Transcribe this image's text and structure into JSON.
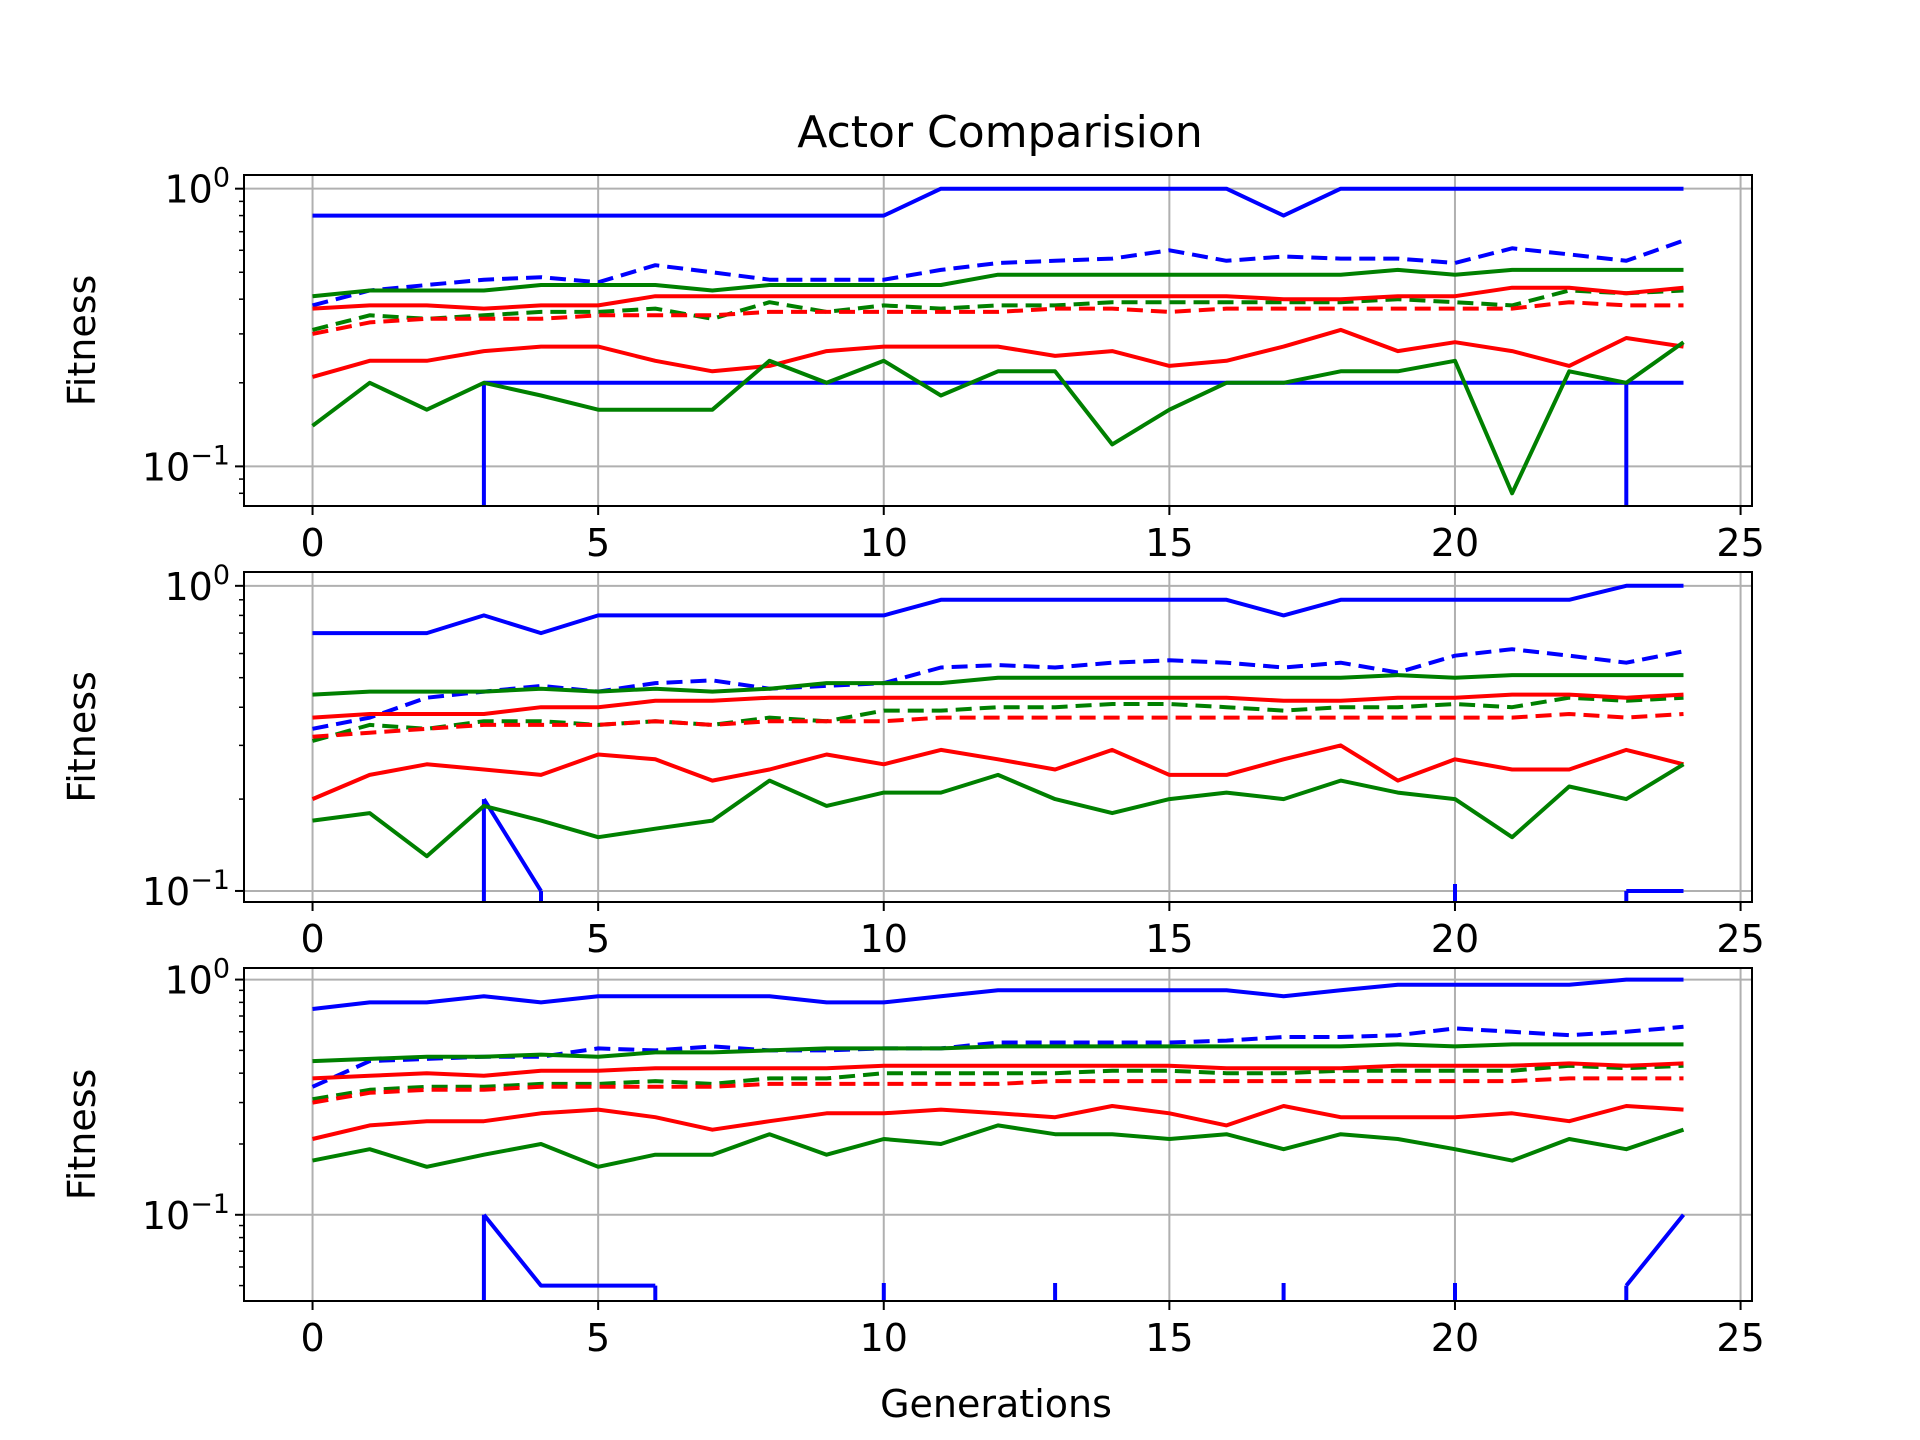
{
  "title": "Actor Comparision",
  "xlabel": "Generations",
  "colors": {
    "blue": "#0000ff",
    "green": "#008000",
    "red": "#ff0000",
    "grid": "#b0b0b0"
  },
  "chart_data": [
    {
      "type": "line",
      "title": "Actor Comparision",
      "ylabel": "Fitness",
      "yscale": "log",
      "xlim": [
        -1.2,
        25.2
      ],
      "ylim": [
        0.072,
        1.12
      ],
      "x_ticks": [
        0,
        5,
        10,
        15,
        20,
        25
      ],
      "y_ticks": [
        {
          "value": 1,
          "label": "10",
          "exp": "0"
        },
        {
          "value": 0.1,
          "label": "10",
          "exp": "−1"
        }
      ],
      "grid": true,
      "x": [
        0,
        1,
        2,
        3,
        4,
        5,
        6,
        7,
        8,
        9,
        10,
        11,
        12,
        13,
        14,
        15,
        16,
        17,
        18,
        19,
        20,
        21,
        22,
        23,
        24
      ],
      "series": [
        {
          "color": "blue",
          "dash": false,
          "values": [
            0.8,
            0.8,
            0.8,
            0.8,
            0.8,
            0.8,
            0.8,
            0.8,
            0.8,
            0.8,
            0.8,
            1,
            1,
            1,
            1,
            1,
            1,
            0.8,
            1,
            1,
            1,
            1,
            1,
            1,
            1
          ]
        },
        {
          "color": "blue",
          "dash": false,
          "values": [
            null,
            null,
            null,
            0.2,
            0.2,
            0.2,
            0.2,
            0.2,
            0.2,
            0.2,
            0.2,
            0.2,
            0.2,
            0.2,
            0.2,
            0.2,
            0.2,
            0.2,
            0.2,
            0.2,
            0.2,
            0.2,
            0.2,
            0.2,
            0.2
          ],
          "drop_from": [
            3,
            23
          ],
          "floor_segments": [
            [
              3,
              23
            ]
          ],
          "visible_segments": [
            [
              23,
              24
            ]
          ]
        },
        {
          "color": "blue",
          "dash": true,
          "values": [
            0.38,
            0.43,
            0.45,
            0.47,
            0.48,
            0.46,
            0.53,
            0.5,
            0.47,
            0.47,
            0.47,
            0.51,
            0.54,
            0.55,
            0.56,
            0.6,
            0.55,
            0.57,
            0.56,
            0.56,
            0.54,
            0.61,
            0.58,
            0.55,
            0.65
          ]
        },
        {
          "color": "green",
          "dash": false,
          "values": [
            0.41,
            0.43,
            0.43,
            0.43,
            0.45,
            0.45,
            0.45,
            0.43,
            0.45,
            0.45,
            0.45,
            0.45,
            0.49,
            0.49,
            0.49,
            0.49,
            0.49,
            0.49,
            0.49,
            0.51,
            0.49,
            0.51,
            0.51,
            0.51,
            0.51
          ]
        },
        {
          "color": "green",
          "dash": true,
          "values": [
            0.31,
            0.35,
            0.34,
            0.35,
            0.36,
            0.36,
            0.37,
            0.34,
            0.39,
            0.36,
            0.38,
            0.37,
            0.38,
            0.38,
            0.39,
            0.39,
            0.39,
            0.39,
            0.39,
            0.4,
            0.39,
            0.38,
            0.43,
            0.42,
            0.43
          ]
        },
        {
          "color": "red",
          "dash": false,
          "values": [
            0.37,
            0.38,
            0.38,
            0.37,
            0.38,
            0.38,
            0.41,
            0.41,
            0.41,
            0.41,
            0.41,
            0.41,
            0.41,
            0.41,
            0.41,
            0.41,
            0.41,
            0.4,
            0.4,
            0.41,
            0.41,
            0.44,
            0.44,
            0.42,
            0.44
          ]
        },
        {
          "color": "red",
          "dash": true,
          "values": [
            0.3,
            0.33,
            0.34,
            0.34,
            0.34,
            0.35,
            0.35,
            0.35,
            0.36,
            0.36,
            0.36,
            0.36,
            0.36,
            0.37,
            0.37,
            0.36,
            0.37,
            0.37,
            0.37,
            0.37,
            0.37,
            0.37,
            0.39,
            0.38,
            0.38
          ]
        },
        {
          "color": "red",
          "dash": false,
          "values": [
            0.21,
            0.24,
            0.24,
            0.26,
            0.27,
            0.27,
            0.24,
            0.22,
            0.23,
            0.26,
            0.27,
            0.27,
            0.27,
            0.25,
            0.26,
            0.23,
            0.24,
            0.27,
            0.31,
            0.26,
            0.28,
            0.26,
            0.23,
            0.29,
            0.27
          ]
        },
        {
          "color": "green",
          "dash": false,
          "values": [
            0.14,
            0.2,
            0.16,
            0.2,
            0.18,
            0.16,
            0.16,
            0.16,
            0.24,
            0.2,
            0.24,
            0.18,
            0.22,
            0.22,
            0.12,
            0.16,
            0.2,
            0.2,
            0.22,
            0.22,
            0.24,
            0.08,
            0.22,
            0.2,
            0.28
          ]
        }
      ]
    },
    {
      "type": "line",
      "ylabel": "Fitness",
      "yscale": "log",
      "xlim": [
        -1.2,
        25.2
      ],
      "ylim": [
        0.092,
        1.11
      ],
      "x_ticks": [
        0,
        5,
        10,
        15,
        20,
        25
      ],
      "y_ticks": [
        {
          "value": 1,
          "label": "10",
          "exp": "0"
        },
        {
          "value": 0.1,
          "label": "10",
          "exp": "−1"
        }
      ],
      "grid": true,
      "x": [
        0,
        1,
        2,
        3,
        4,
        5,
        6,
        7,
        8,
        9,
        10,
        11,
        12,
        13,
        14,
        15,
        16,
        17,
        18,
        19,
        20,
        21,
        22,
        23,
        24
      ],
      "series": [
        {
          "color": "blue",
          "dash": false,
          "values": [
            0.7,
            0.7,
            0.7,
            0.8,
            0.7,
            0.8,
            0.8,
            0.8,
            0.8,
            0.8,
            0.8,
            0.9,
            0.9,
            0.9,
            0.9,
            0.9,
            0.9,
            0.8,
            0.9,
            0.9,
            0.9,
            0.9,
            0.9,
            1,
            1
          ]
        },
        {
          "color": "blue",
          "dash": false,
          "values": [
            null,
            null,
            null,
            0.2,
            0.1,
            null,
            null,
            null,
            null,
            null,
            null,
            null,
            null,
            null,
            null,
            null,
            null,
            null,
            null,
            null,
            null,
            null,
            null,
            0.1,
            0.1
          ],
          "drop_from": [
            3,
            4,
            20,
            23
          ]
        },
        {
          "color": "blue",
          "dash": true,
          "values": [
            0.34,
            0.37,
            0.43,
            0.45,
            0.47,
            0.45,
            0.48,
            0.49,
            0.46,
            0.47,
            0.48,
            0.54,
            0.55,
            0.54,
            0.56,
            0.57,
            0.56,
            0.54,
            0.56,
            0.52,
            0.59,
            0.62,
            0.59,
            0.56,
            0.61
          ]
        },
        {
          "color": "green",
          "dash": false,
          "values": [
            0.44,
            0.45,
            0.45,
            0.45,
            0.46,
            0.45,
            0.46,
            0.45,
            0.46,
            0.48,
            0.48,
            0.48,
            0.5,
            0.5,
            0.5,
            0.5,
            0.5,
            0.5,
            0.5,
            0.51,
            0.5,
            0.51,
            0.51,
            0.51,
            0.51
          ]
        },
        {
          "color": "green",
          "dash": true,
          "values": [
            0.31,
            0.35,
            0.34,
            0.36,
            0.36,
            0.35,
            0.36,
            0.35,
            0.37,
            0.36,
            0.39,
            0.39,
            0.4,
            0.4,
            0.41,
            0.41,
            0.4,
            0.39,
            0.4,
            0.4,
            0.41,
            0.4,
            0.43,
            0.42,
            0.43
          ]
        },
        {
          "color": "red",
          "dash": false,
          "values": [
            0.37,
            0.38,
            0.38,
            0.38,
            0.4,
            0.4,
            0.42,
            0.42,
            0.43,
            0.43,
            0.43,
            0.43,
            0.43,
            0.43,
            0.43,
            0.43,
            0.43,
            0.42,
            0.42,
            0.43,
            0.43,
            0.44,
            0.44,
            0.43,
            0.44
          ]
        },
        {
          "color": "red",
          "dash": true,
          "values": [
            0.32,
            0.33,
            0.34,
            0.35,
            0.35,
            0.35,
            0.36,
            0.35,
            0.36,
            0.36,
            0.36,
            0.37,
            0.37,
            0.37,
            0.37,
            0.37,
            0.37,
            0.37,
            0.37,
            0.37,
            0.37,
            0.37,
            0.38,
            0.37,
            0.38
          ]
        },
        {
          "color": "red",
          "dash": false,
          "values": [
            0.2,
            0.24,
            0.26,
            0.25,
            0.24,
            0.28,
            0.27,
            0.23,
            0.25,
            0.28,
            0.26,
            0.29,
            0.27,
            0.25,
            0.29,
            0.24,
            0.24,
            0.27,
            0.3,
            0.23,
            0.27,
            0.25,
            0.25,
            0.29,
            0.26
          ]
        },
        {
          "color": "green",
          "dash": false,
          "values": [
            0.17,
            0.18,
            0.13,
            0.19,
            0.17,
            0.15,
            0.16,
            0.17,
            0.23,
            0.19,
            0.21,
            0.21,
            0.24,
            0.2,
            0.18,
            0.2,
            0.21,
            0.2,
            0.23,
            0.21,
            0.2,
            0.15,
            0.22,
            0.2,
            0.26
          ]
        }
      ]
    },
    {
      "type": "line",
      "ylabel": "Fitness",
      "yscale": "log",
      "xlim": [
        -1.2,
        25.2
      ],
      "ylim": [
        0.043,
        1.12
      ],
      "x_ticks": [
        0,
        5,
        10,
        15,
        20,
        25
      ],
      "y_ticks": [
        {
          "value": 1,
          "label": "10",
          "exp": "0"
        },
        {
          "value": 0.1,
          "label": "10",
          "exp": "−1"
        }
      ],
      "grid": true,
      "x": [
        0,
        1,
        2,
        3,
        4,
        5,
        6,
        7,
        8,
        9,
        10,
        11,
        12,
        13,
        14,
        15,
        16,
        17,
        18,
        19,
        20,
        21,
        22,
        23,
        24
      ],
      "series": [
        {
          "color": "blue",
          "dash": false,
          "values": [
            0.75,
            0.8,
            0.8,
            0.85,
            0.8,
            0.85,
            0.85,
            0.85,
            0.85,
            0.8,
            0.8,
            0.85,
            0.9,
            0.9,
            0.9,
            0.9,
            0.9,
            0.85,
            0.9,
            0.95,
            0.95,
            0.95,
            0.95,
            1,
            1
          ]
        },
        {
          "color": "blue",
          "dash": false,
          "values": [
            null,
            null,
            null,
            0.1,
            0.05,
            0.05,
            0.05,
            null,
            null,
            null,
            null,
            null,
            null,
            null,
            null,
            null,
            null,
            null,
            null,
            null,
            null,
            null,
            null,
            0.05,
            0.1
          ],
          "drop_from": [
            3,
            6,
            10,
            13,
            17,
            20,
            23
          ]
        },
        {
          "color": "blue",
          "dash": true,
          "values": [
            0.35,
            0.45,
            0.46,
            0.47,
            0.47,
            0.51,
            0.5,
            0.52,
            0.5,
            0.5,
            0.51,
            0.51,
            0.54,
            0.54,
            0.54,
            0.54,
            0.55,
            0.57,
            0.57,
            0.58,
            0.62,
            0.6,
            0.58,
            0.6,
            0.63
          ]
        },
        {
          "color": "green",
          "dash": false,
          "values": [
            0.45,
            0.46,
            0.47,
            0.47,
            0.48,
            0.47,
            0.49,
            0.49,
            0.5,
            0.51,
            0.51,
            0.51,
            0.52,
            0.52,
            0.52,
            0.52,
            0.52,
            0.52,
            0.52,
            0.53,
            0.52,
            0.53,
            0.53,
            0.53,
            0.53
          ]
        },
        {
          "color": "green",
          "dash": true,
          "values": [
            0.31,
            0.34,
            0.35,
            0.35,
            0.36,
            0.36,
            0.37,
            0.36,
            0.38,
            0.38,
            0.4,
            0.4,
            0.4,
            0.4,
            0.41,
            0.41,
            0.4,
            0.4,
            0.41,
            0.41,
            0.41,
            0.41,
            0.43,
            0.42,
            0.43
          ]
        },
        {
          "color": "red",
          "dash": false,
          "values": [
            0.38,
            0.39,
            0.4,
            0.39,
            0.41,
            0.41,
            0.42,
            0.42,
            0.42,
            0.42,
            0.43,
            0.43,
            0.43,
            0.43,
            0.43,
            0.43,
            0.42,
            0.42,
            0.42,
            0.43,
            0.43,
            0.43,
            0.44,
            0.43,
            0.44
          ]
        },
        {
          "color": "red",
          "dash": true,
          "values": [
            0.3,
            0.33,
            0.34,
            0.34,
            0.35,
            0.35,
            0.35,
            0.35,
            0.36,
            0.36,
            0.36,
            0.36,
            0.36,
            0.37,
            0.37,
            0.37,
            0.37,
            0.37,
            0.37,
            0.37,
            0.37,
            0.37,
            0.38,
            0.38,
            0.38
          ]
        },
        {
          "color": "red",
          "dash": false,
          "values": [
            0.21,
            0.24,
            0.25,
            0.25,
            0.27,
            0.28,
            0.26,
            0.23,
            0.25,
            0.27,
            0.27,
            0.28,
            0.27,
            0.26,
            0.29,
            0.27,
            0.24,
            0.29,
            0.26,
            0.26,
            0.26,
            0.27,
            0.25,
            0.29,
            0.28
          ]
        },
        {
          "color": "green",
          "dash": false,
          "values": [
            0.17,
            0.19,
            0.16,
            0.18,
            0.2,
            0.16,
            0.18,
            0.18,
            0.22,
            0.18,
            0.21,
            0.2,
            0.24,
            0.22,
            0.22,
            0.21,
            0.22,
            0.19,
            0.22,
            0.21,
            0.19,
            0.17,
            0.21,
            0.19,
            0.23
          ]
        }
      ]
    }
  ]
}
